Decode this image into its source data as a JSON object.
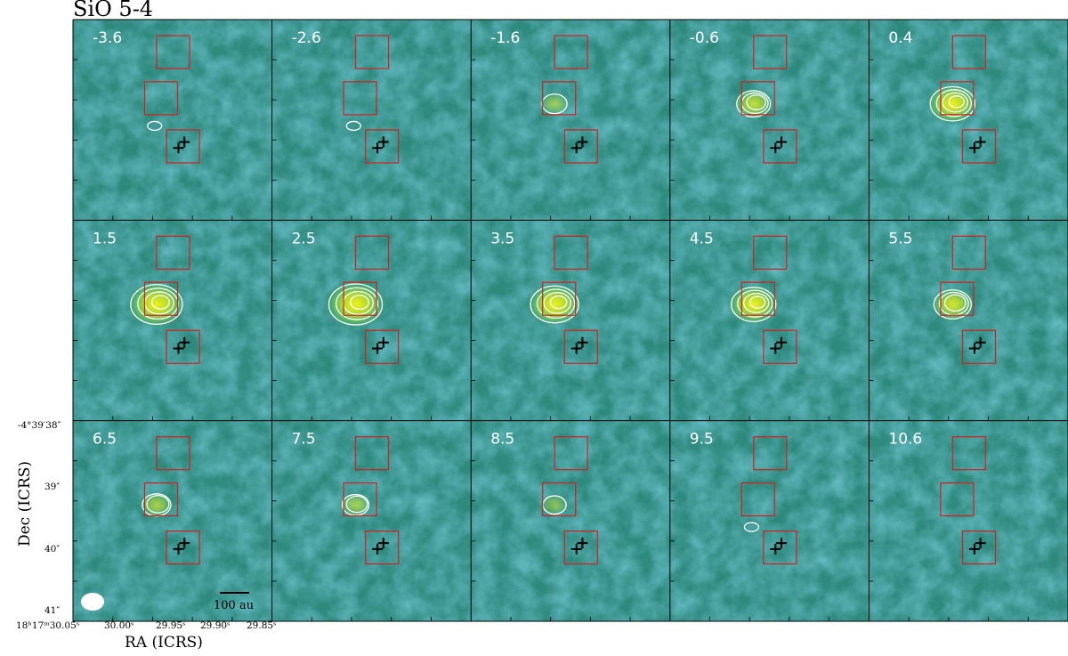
{
  "title": "SiO 5-4",
  "xlabel": "RA (ICRS)",
  "ylabel": "Dec (ICRS)",
  "colors": {
    "background": "#2f8a7e",
    "bright": "#e6ee1c",
    "contour": "#ffffff",
    "box": "#d42020",
    "marker": "#000000"
  },
  "x_ticks": [
    "18ʰ17ᵐ30.05ˢ",
    "30.00ˢ",
    "29.95ˢ",
    "29.90ˢ",
    "29.85ˢ"
  ],
  "y_ticks": [
    "-4°39′38″",
    "39″",
    "40″",
    "41″"
  ],
  "scalebar_label": "100 au",
  "chart_data": {
    "type": "heatmap",
    "title": "SiO 5-4",
    "xlabel": "RA (ICRS)",
    "ylabel": "Dec (ICRS)",
    "layout": "3 rows x 5 columns of channel maps",
    "panel_labels": [
      "-3.6",
      "-2.6",
      "-1.6",
      "-0.6",
      "0.4",
      "1.5",
      "2.5",
      "3.5",
      "4.5",
      "5.5",
      "6.5",
      "7.5",
      "8.5",
      "9.5",
      "10.6"
    ],
    "emission_strength": [
      0.05,
      0.04,
      0.2,
      0.45,
      0.75,
      0.95,
      1.0,
      0.85,
      0.75,
      0.55,
      0.3,
      0.25,
      0.15,
      0.08,
      0.0
    ],
    "x_ticks": [
      "18ʰ17ᵐ30.05ˢ",
      "30.00ˢ",
      "29.95ˢ",
      "29.90ˢ",
      "29.85ˢ"
    ],
    "y_ticks": [
      "-4°39′38″",
      "39″",
      "40″",
      "41″"
    ],
    "grid": false,
    "colormap": "viridis",
    "contours": "white",
    "scalebar": "100 au",
    "beam": "white ellipse, bottom-left of first panel in bottom row"
  }
}
